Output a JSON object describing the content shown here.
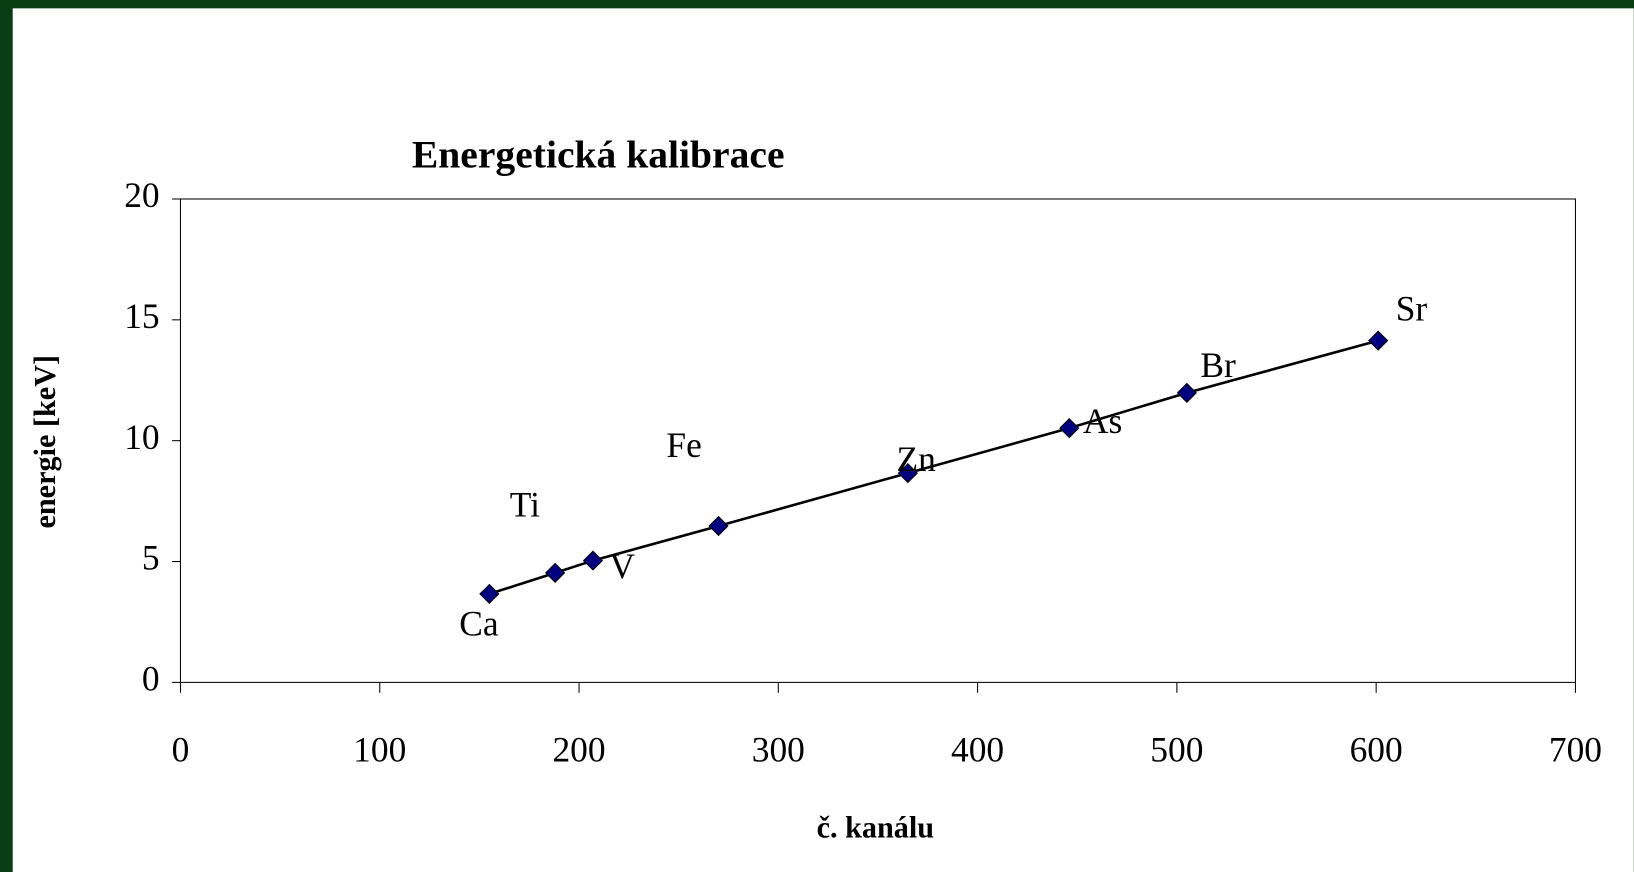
{
  "chart_data": {
    "type": "scatter",
    "title": "Energetická kalibrace",
    "x_label": "č. kanálu",
    "y_label": "energie [keV]",
    "labels": [
      "Ca",
      "Ti",
      "V",
      "Fe",
      "Zn",
      "As",
      "Br",
      "Sr"
    ],
    "x": [
      155,
      188,
      207,
      270,
      365,
      446,
      505,
      601
    ],
    "series": [
      {
        "color": "#000080",
        "values": [
          3.66,
          4.53,
          5.04,
          6.47,
          8.66,
          10.52,
          11.98,
          14.14
        ]
      }
    ],
    "xlim": [
      0,
      700
    ],
    "xticks": [
      0,
      100,
      200,
      300,
      400,
      500,
      600,
      700
    ],
    "ylim": [
      0,
      20
    ],
    "yticks": [
      0,
      5,
      10,
      15,
      20
    ],
    "grid": false,
    "line": true
  }
}
